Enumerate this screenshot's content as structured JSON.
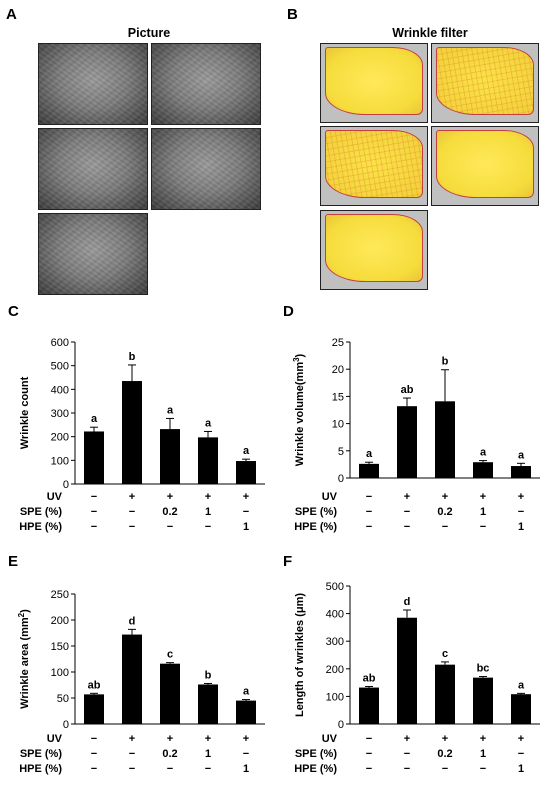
{
  "panels": {
    "A": {
      "letter": "A",
      "title": "Picture"
    },
    "B": {
      "letter": "B",
      "title": "Wrinkle filter"
    }
  },
  "chart_data": [
    {
      "id": "C",
      "letter": "C",
      "type": "bar",
      "ylabel": "Wrinkle count",
      "ylim": [
        0,
        600
      ],
      "yticks": [
        "0",
        "100",
        "200",
        "300",
        "400",
        "500",
        "600"
      ],
      "values": [
        222,
        435,
        232,
        197,
        97
      ],
      "errors": [
        18,
        68,
        45,
        25,
        8
      ],
      "letters": [
        "a",
        "b",
        "a",
        "a",
        "a"
      ],
      "conditions": [
        {
          "label": "UV",
          "values": [
            "−",
            "+",
            "+",
            "+",
            "+"
          ]
        },
        {
          "label": "SPE (%)",
          "values": [
            "−",
            "−",
            "0.2",
            "1",
            "−"
          ]
        },
        {
          "label": "HPE (%)",
          "values": [
            "−",
            "−",
            "−",
            "−",
            "1"
          ]
        }
      ]
    },
    {
      "id": "D",
      "letter": "D",
      "type": "bar",
      "ylabel": "Wrinkle volume(mm",
      "ylabel_sup": "3",
      "ylabel_end": ")",
      "ylim": [
        0,
        25
      ],
      "yticks": [
        "0",
        "5",
        "10",
        "15",
        "20",
        "25"
      ],
      "values": [
        2.6,
        13.2,
        14.1,
        2.9,
        2.2
      ],
      "errors": [
        0.3,
        1.5,
        5.8,
        0.3,
        0.5
      ],
      "letters": [
        "a",
        "ab",
        "b",
        "a",
        "a"
      ],
      "conditions": [
        {
          "label": "UV",
          "values": [
            "−",
            "+",
            "+",
            "+",
            "+"
          ]
        },
        {
          "label": "SPE (%)",
          "values": [
            "−",
            "−",
            "0.2",
            "1",
            "−"
          ]
        },
        {
          "label": "HPE (%)",
          "values": [
            "−",
            "−",
            "−",
            "−",
            "1"
          ]
        }
      ]
    },
    {
      "id": "E",
      "letter": "E",
      "type": "bar",
      "ylabel": "Wrinkle area (mm",
      "ylabel_sup": "2",
      "ylabel_end": ")",
      "ylim": [
        0,
        250
      ],
      "yticks": [
        "0",
        "50",
        "100",
        "150",
        "200",
        "250"
      ],
      "values": [
        57,
        172,
        116,
        76,
        45
      ],
      "errors": [
        2,
        10,
        2,
        2,
        2
      ],
      "letters": [
        "ab",
        "d",
        "c",
        "b",
        "a"
      ],
      "conditions": [
        {
          "label": "UV",
          "values": [
            "−",
            "+",
            "+",
            "+",
            "+"
          ]
        },
        {
          "label": "SPE (%)",
          "values": [
            "−",
            "−",
            "0.2",
            "1",
            "−"
          ]
        },
        {
          "label": "HPE (%)",
          "values": [
            "−",
            "−",
            "−",
            "−",
            "1"
          ]
        }
      ]
    },
    {
      "id": "F",
      "letter": "F",
      "type": "bar",
      "ylabel": "Length of wrinkles (μm)",
      "ylim": [
        0,
        500
      ],
      "yticks": [
        "0",
        "100",
        "200",
        "300",
        "400",
        "500"
      ],
      "values": [
        132,
        385,
        215,
        168,
        108
      ],
      "errors": [
        4,
        28,
        10,
        4,
        3
      ],
      "letters": [
        "ab",
        "d",
        "c",
        "bc",
        "a"
      ],
      "conditions": [
        {
          "label": "UV",
          "values": [
            "−",
            "+",
            "+",
            "+",
            "+"
          ]
        },
        {
          "label": "SPE (%)",
          "values": [
            "−",
            "−",
            "0.2",
            "1",
            "−"
          ]
        },
        {
          "label": "HPE (%)",
          "values": [
            "−",
            "−",
            "−",
            "−",
            "1"
          ]
        }
      ]
    }
  ]
}
